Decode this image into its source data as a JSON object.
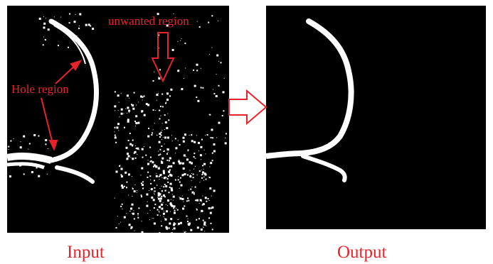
{
  "figure": {
    "input_caption": "Input",
    "output_caption": "Output",
    "hole_label": "Hole region",
    "unwanted_label": "unwanted region",
    "colors": {
      "annotation": "#e8232a",
      "arrow_stroke": "#e8232a",
      "panel_background": "#000000",
      "foreground": "#ffffff"
    }
  }
}
